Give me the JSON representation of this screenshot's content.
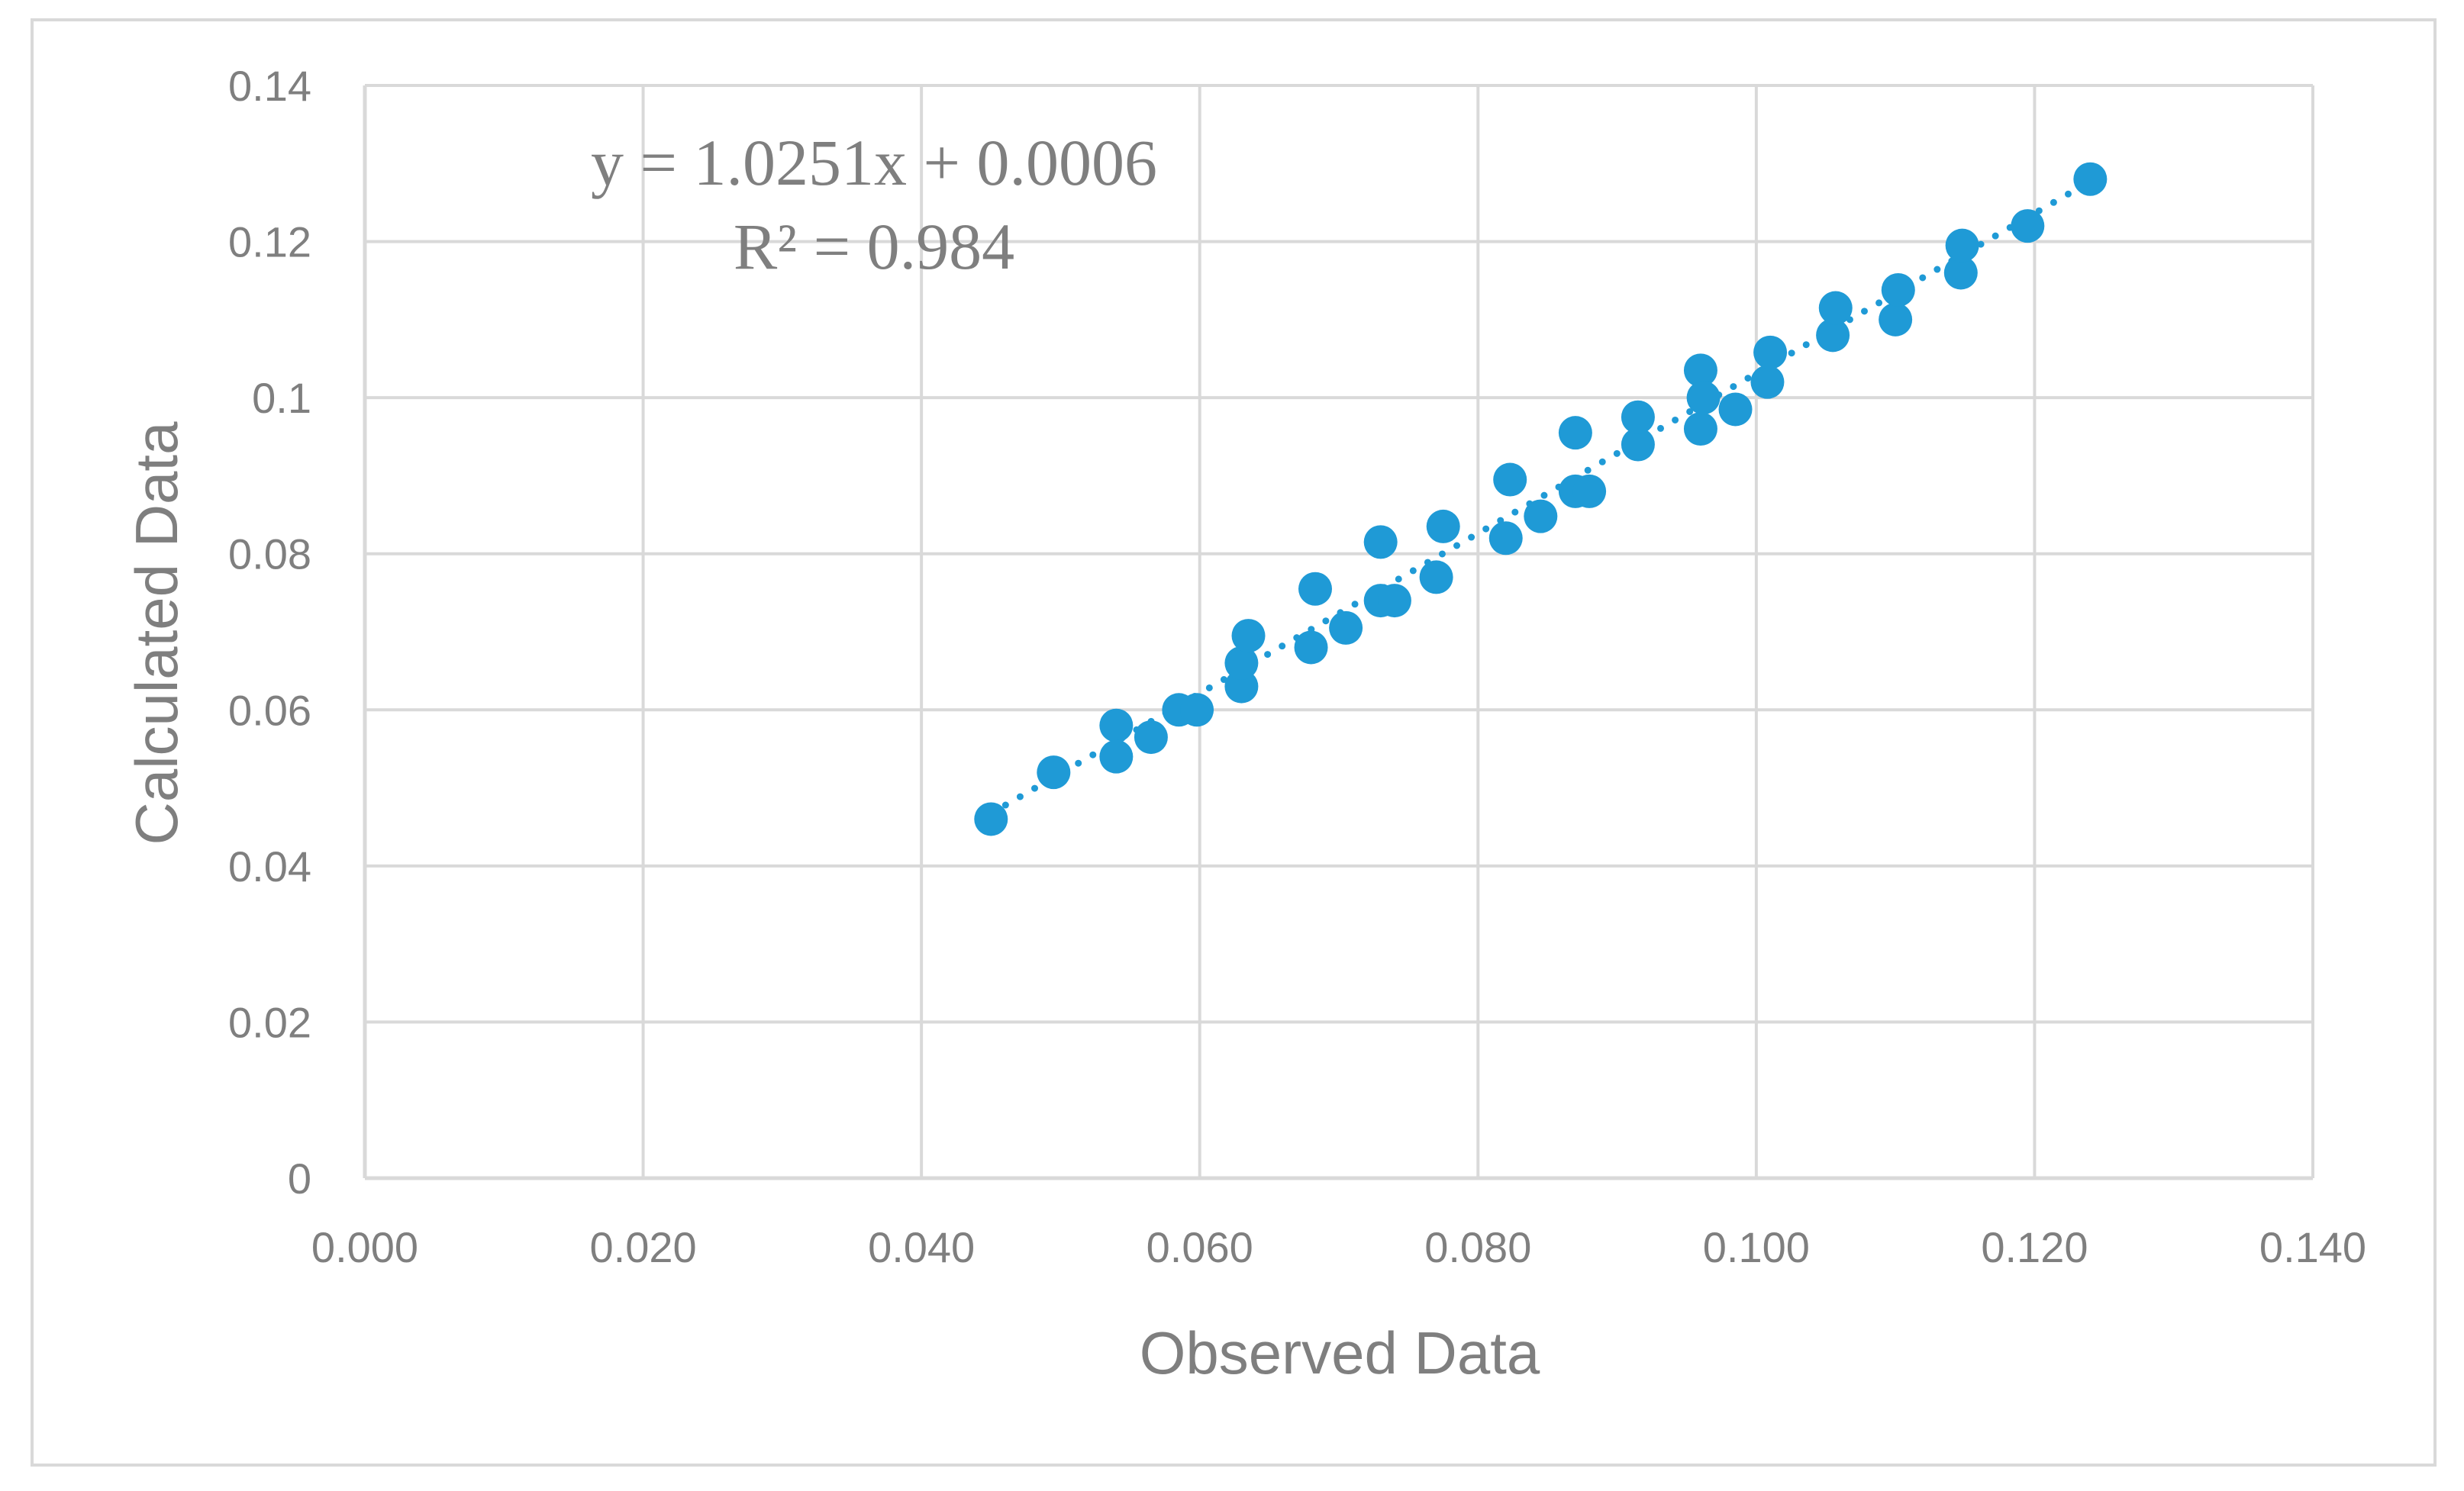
{
  "chart_data": {
    "type": "scatter",
    "xlabel": "Observed Data",
    "ylabel": "Calculated Data",
    "xlim": [
      0,
      0.14
    ],
    "ylim": [
      0,
      0.14
    ],
    "x_ticks": [
      "0.000",
      "0.020",
      "0.040",
      "0.060",
      "0.080",
      "0.100",
      "0.120",
      "0.140"
    ],
    "y_ticks": [
      "0",
      "0.02",
      "0.04",
      "0.06",
      "0.08",
      "0.1",
      "0.12",
      "0.14"
    ],
    "grid": true,
    "legend": "none",
    "marker_color": "#1f9ad6",
    "grid_color": "#d9d9d9",
    "trendline": {
      "type": "linear",
      "style": "dotted",
      "slope": 1.0251,
      "intercept": 0.0006,
      "equation": "y = 1.0251x + 0.0006",
      "r_squared": "R² = 0.984"
    },
    "points": [
      {
        "x": 0.045,
        "y": 0.046
      },
      {
        "x": 0.0495,
        "y": 0.052
      },
      {
        "x": 0.054,
        "y": 0.058
      },
      {
        "x": 0.054,
        "y": 0.054
      },
      {
        "x": 0.0565,
        "y": 0.0565
      },
      {
        "x": 0.0585,
        "y": 0.06
      },
      {
        "x": 0.0598,
        "y": 0.06
      },
      {
        "x": 0.063,
        "y": 0.063
      },
      {
        "x": 0.063,
        "y": 0.066
      },
      {
        "x": 0.0635,
        "y": 0.0695
      },
      {
        "x": 0.068,
        "y": 0.068
      },
      {
        "x": 0.0683,
        "y": 0.0755
      },
      {
        "x": 0.0705,
        "y": 0.0705
      },
      {
        "x": 0.073,
        "y": 0.0815
      },
      {
        "x": 0.073,
        "y": 0.074
      },
      {
        "x": 0.074,
        "y": 0.074
      },
      {
        "x": 0.077,
        "y": 0.077
      },
      {
        "x": 0.0775,
        "y": 0.0835
      },
      {
        "x": 0.082,
        "y": 0.082
      },
      {
        "x": 0.0823,
        "y": 0.0895
      },
      {
        "x": 0.0845,
        "y": 0.0848
      },
      {
        "x": 0.087,
        "y": 0.0955
      },
      {
        "x": 0.087,
        "y": 0.088
      },
      {
        "x": 0.088,
        "y": 0.088
      },
      {
        "x": 0.0915,
        "y": 0.094
      },
      {
        "x": 0.0915,
        "y": 0.0975
      },
      {
        "x": 0.096,
        "y": 0.096
      },
      {
        "x": 0.096,
        "y": 0.1035
      },
      {
        "x": 0.0962,
        "y": 0.1
      },
      {
        "x": 0.0985,
        "y": 0.0985
      },
      {
        "x": 0.1008,
        "y": 0.102
      },
      {
        "x": 0.101,
        "y": 0.1058
      },
      {
        "x": 0.1055,
        "y": 0.108
      },
      {
        "x": 0.1057,
        "y": 0.1115
      },
      {
        "x": 0.11,
        "y": 0.11
      },
      {
        "x": 0.1102,
        "y": 0.1138
      },
      {
        "x": 0.1147,
        "y": 0.116
      },
      {
        "x": 0.1148,
        "y": 0.1195
      },
      {
        "x": 0.1195,
        "y": 0.122
      },
      {
        "x": 0.124,
        "y": 0.128
      }
    ]
  }
}
